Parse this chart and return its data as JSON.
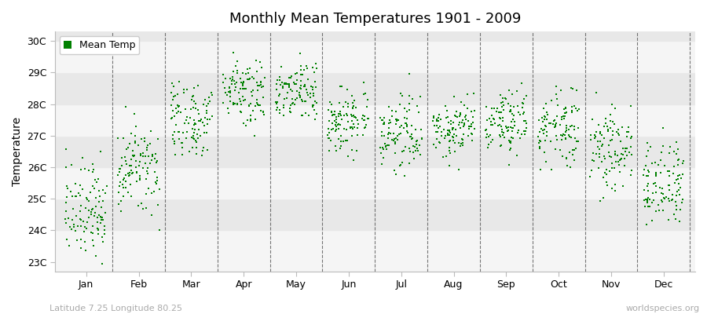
{
  "title": "Monthly Mean Temperatures 1901 - 2009",
  "ylabel": "Temperature",
  "ytick_labels": [
    "23C",
    "24C",
    "25C",
    "26C",
    "27C",
    "28C",
    "29C",
    "30C"
  ],
  "ytick_values": [
    23,
    24,
    25,
    26,
    27,
    28,
    29,
    30
  ],
  "ylim": [
    22.7,
    30.3
  ],
  "months": [
    "Jan",
    "Feb",
    "Mar",
    "Apr",
    "May",
    "Jun",
    "Jul",
    "Aug",
    "Sep",
    "Oct",
    "Nov",
    "Dec"
  ],
  "scatter_color": "#008000",
  "marker_size": 3,
  "background_color": "#eeeeee",
  "legend_label": "Mean Temp",
  "subtitle_left": "Latitude 7.25 Longitude 80.25",
  "subtitle_right": "worldspecies.org",
  "n_years": 109,
  "monthly_means": [
    24.6,
    25.9,
    27.5,
    28.5,
    28.4,
    27.5,
    27.1,
    27.2,
    27.4,
    27.3,
    26.6,
    25.5
  ],
  "monthly_stds": [
    0.75,
    0.7,
    0.65,
    0.55,
    0.5,
    0.55,
    0.55,
    0.5,
    0.55,
    0.6,
    0.7,
    0.65
  ]
}
